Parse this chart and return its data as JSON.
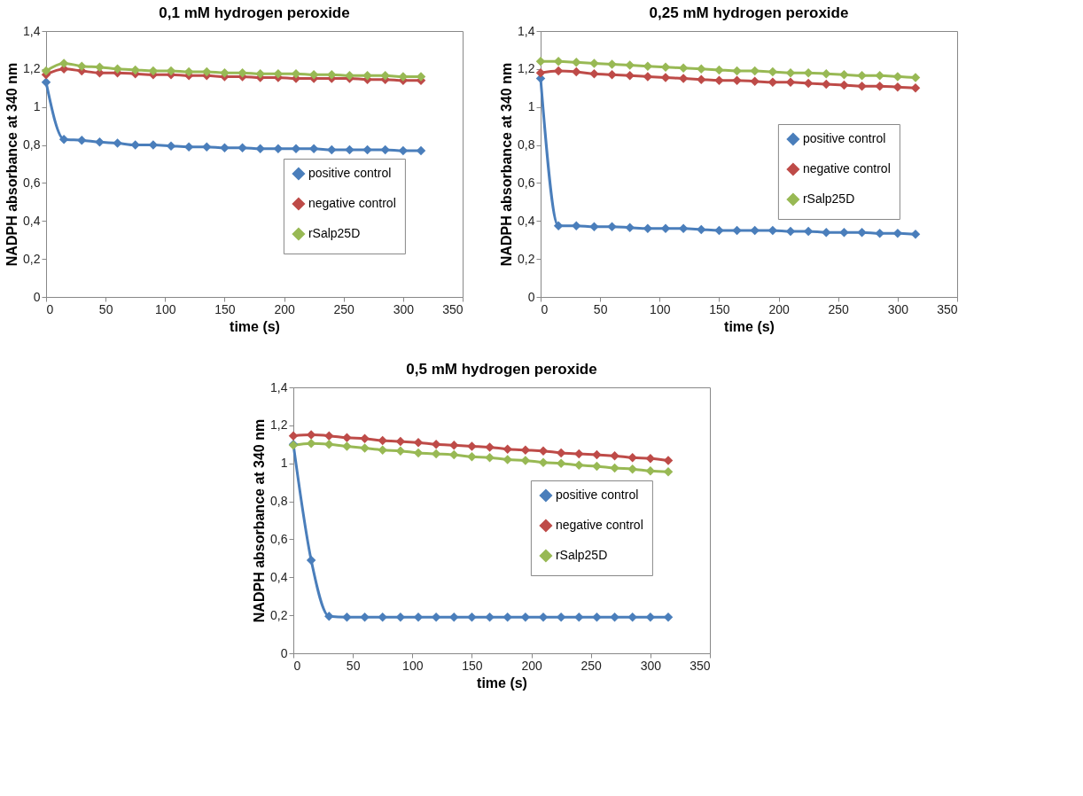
{
  "chart_data": [
    {
      "type": "line",
      "title": "0,1 mM hydrogen peroxide",
      "xlabel": "time (s)",
      "ylabel": "NADPH absorbance at 340 nm",
      "legend": "bottom right",
      "marker": "diamond",
      "grid": false,
      "x": [
        0,
        15,
        30,
        45,
        60,
        75,
        90,
        105,
        120,
        135,
        150,
        165,
        180,
        195,
        210,
        225,
        240,
        255,
        270,
        285,
        300,
        315
      ],
      "xlim": [
        0,
        350
      ],
      "xticks": [
        0,
        50,
        100,
        150,
        200,
        250,
        300,
        350
      ],
      "ylim": [
        0,
        1.4
      ],
      "yticks": [
        0,
        {
          "value": 0.2,
          "label": "0,2"
        },
        {
          "value": 0.4,
          "label": "0,4"
        },
        {
          "value": 0.6,
          "label": "0,6"
        },
        {
          "value": 0.8,
          "label": "0,8"
        },
        1,
        {
          "value": 1.2,
          "label": "1,2"
        },
        {
          "value": 1.4,
          "label": "1,4"
        }
      ],
      "series": [
        {
          "name": "positive control",
          "color": "#4a7ebb",
          "values": [
            1.13,
            0.83,
            0.825,
            0.815,
            0.81,
            0.8,
            0.8,
            0.795,
            0.79,
            0.79,
            0.785,
            0.785,
            0.78,
            0.78,
            0.78,
            0.78,
            0.775,
            0.775,
            0.775,
            0.775,
            0.77,
            0.77
          ]
        },
        {
          "name": "negative control",
          "color": "#be4b48",
          "values": [
            1.17,
            1.2,
            1.19,
            1.18,
            1.18,
            1.175,
            1.17,
            1.17,
            1.165,
            1.165,
            1.16,
            1.16,
            1.155,
            1.155,
            1.15,
            1.15,
            1.15,
            1.15,
            1.145,
            1.145,
            1.14,
            1.14
          ]
        },
        {
          "name": "rSalp25D",
          "color": "#98b954",
          "values": [
            1.19,
            1.23,
            1.215,
            1.21,
            1.2,
            1.195,
            1.19,
            1.19,
            1.185,
            1.185,
            1.18,
            1.18,
            1.175,
            1.175,
            1.175,
            1.17,
            1.17,
            1.165,
            1.165,
            1.165,
            1.16,
            1.16
          ]
        }
      ]
    },
    {
      "type": "line",
      "title": "0,25 mM hydrogen peroxide",
      "xlabel": "time (s)",
      "ylabel": "NADPH absorbance at 340 nm",
      "legend": "right",
      "marker": "diamond",
      "grid": false,
      "x": [
        0,
        15,
        30,
        45,
        60,
        75,
        90,
        105,
        120,
        135,
        150,
        165,
        180,
        195,
        210,
        225,
        240,
        255,
        270,
        285,
        300,
        315
      ],
      "xlim": [
        0,
        350
      ],
      "xticks": [
        0,
        50,
        100,
        150,
        200,
        250,
        300,
        350
      ],
      "ylim": [
        0,
        1.4
      ],
      "yticks": [
        0,
        {
          "value": 0.2,
          "label": "0,2"
        },
        {
          "value": 0.4,
          "label": "0,4"
        },
        {
          "value": 0.6,
          "label": "0,6"
        },
        {
          "value": 0.8,
          "label": "0,8"
        },
        1,
        {
          "value": 1.2,
          "label": "1,2"
        },
        {
          "value": 1.4,
          "label": "1,4"
        }
      ],
      "series": [
        {
          "name": "positive control",
          "color": "#4a7ebb",
          "values": [
            1.15,
            0.375,
            0.375,
            0.37,
            0.37,
            0.365,
            0.36,
            0.36,
            0.36,
            0.355,
            0.35,
            0.35,
            0.35,
            0.35,
            0.345,
            0.345,
            0.34,
            0.34,
            0.34,
            0.335,
            0.335,
            0.33
          ]
        },
        {
          "name": "negative control",
          "color": "#be4b48",
          "values": [
            1.18,
            1.19,
            1.185,
            1.175,
            1.17,
            1.165,
            1.16,
            1.155,
            1.15,
            1.145,
            1.14,
            1.14,
            1.135,
            1.13,
            1.13,
            1.125,
            1.12,
            1.115,
            1.11,
            1.11,
            1.105,
            1.1
          ]
        },
        {
          "name": "rSalp25D",
          "color": "#98b954",
          "values": [
            1.24,
            1.24,
            1.235,
            1.23,
            1.225,
            1.22,
            1.215,
            1.21,
            1.205,
            1.2,
            1.195,
            1.19,
            1.19,
            1.185,
            1.18,
            1.18,
            1.175,
            1.17,
            1.165,
            1.165,
            1.16,
            1.155
          ]
        }
      ]
    },
    {
      "type": "line",
      "title": "0,5 mM hydrogen peroxide",
      "xlabel": "time (s)",
      "ylabel": "NADPH absorbance at 340 nm",
      "legend": "right",
      "marker": "diamond",
      "grid": false,
      "x": [
        0,
        15,
        30,
        45,
        60,
        75,
        90,
        105,
        120,
        135,
        150,
        165,
        180,
        195,
        210,
        225,
        240,
        255,
        270,
        285,
        300,
        315
      ],
      "xlim": [
        0,
        350
      ],
      "xticks": [
        0,
        50,
        100,
        150,
        200,
        250,
        300,
        350
      ],
      "ylim": [
        0,
        1.4
      ],
      "yticks": [
        0,
        {
          "value": 0.2,
          "label": "0,2"
        },
        {
          "value": 0.4,
          "label": "0,4"
        },
        {
          "value": 0.6,
          "label": "0,6"
        },
        {
          "value": 0.8,
          "label": "0,8"
        },
        1,
        {
          "value": 1.2,
          "label": "1,2"
        },
        {
          "value": 1.4,
          "label": "1,4"
        }
      ],
      "series": [
        {
          "name": "positive control",
          "color": "#4a7ebb",
          "values": [
            1.1,
            0.49,
            0.195,
            0.19,
            0.19,
            0.19,
            0.19,
            0.19,
            0.19,
            0.19,
            0.19,
            0.19,
            0.19,
            0.19,
            0.19,
            0.19,
            0.19,
            0.19,
            0.19,
            0.19,
            0.19,
            0.19
          ]
        },
        {
          "name": "negative control",
          "color": "#be4b48",
          "values": [
            1.145,
            1.15,
            1.145,
            1.135,
            1.13,
            1.12,
            1.115,
            1.11,
            1.1,
            1.095,
            1.09,
            1.085,
            1.075,
            1.07,
            1.065,
            1.055,
            1.05,
            1.045,
            1.04,
            1.03,
            1.025,
            1.015
          ]
        },
        {
          "name": "rSalp25D",
          "color": "#98b954",
          "values": [
            1.095,
            1.105,
            1.1,
            1.09,
            1.08,
            1.07,
            1.065,
            1.055,
            1.05,
            1.045,
            1.035,
            1.03,
            1.02,
            1.015,
            1.005,
            1.0,
            0.99,
            0.985,
            0.975,
            0.97,
            0.96,
            0.955
          ]
        }
      ]
    }
  ]
}
